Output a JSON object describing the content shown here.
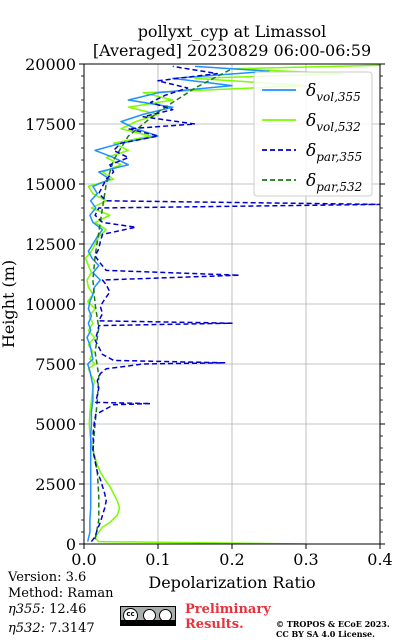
{
  "chart_data": {
    "type": "line",
    "title_line1": "pollyxt_cyp at Limassol",
    "title_line2": "[Averaged] 20230829 06:00-06:59",
    "xlabel": "Depolarization Ratio",
    "ylabel": "Height (m)",
    "xlim": [
      0,
      0.4
    ],
    "ylim": [
      0,
      20000
    ],
    "x_ticks": [
      "0.0",
      "0.1",
      "0.2",
      "0.3",
      "0.4"
    ],
    "y_ticks": [
      "0",
      "2500",
      "5000",
      "7500",
      "10000",
      "12500",
      "15000",
      "17500",
      "20000"
    ],
    "grid": true,
    "legend_position": "top-right",
    "series": [
      {
        "name": "δvol,355",
        "color": "#1e90ff",
        "dash": "solid",
        "points": [
          [
            0.005,
            100
          ],
          [
            0.008,
            500
          ],
          [
            0.008,
            1000
          ],
          [
            0.009,
            1500
          ],
          [
            0.009,
            2000
          ],
          [
            0.009,
            2500
          ],
          [
            0.009,
            3000
          ],
          [
            0.009,
            3500
          ],
          [
            0.009,
            4000
          ],
          [
            0.009,
            4500
          ],
          [
            0.01,
            5000
          ],
          [
            0.01,
            5500
          ],
          [
            0.012,
            6000
          ],
          [
            0.012,
            6300
          ],
          [
            0.012,
            6600
          ],
          [
            0.01,
            6900
          ],
          [
            0.008,
            7200
          ],
          [
            0.005,
            7500
          ],
          [
            0.012,
            7700
          ],
          [
            0.01,
            8000
          ],
          [
            0.008,
            8300
          ],
          [
            0.004,
            8600
          ],
          [
            0.009,
            8900
          ],
          [
            0.006,
            9200
          ],
          [
            0.01,
            9500
          ],
          [
            0.006,
            9800
          ],
          [
            0.008,
            10100
          ],
          [
            0.012,
            10400
          ],
          [
            0.014,
            10700
          ],
          [
            0.022,
            11000
          ],
          [
            0.012,
            11300
          ],
          [
            0.02,
            11600
          ],
          [
            0.011,
            11900
          ],
          [
            0.006,
            12200
          ],
          [
            0.012,
            12500
          ],
          [
            0.018,
            12800
          ],
          [
            0.025,
            13100
          ],
          [
            0.012,
            13400
          ],
          [
            0.008,
            13700
          ],
          [
            0.016,
            14000
          ],
          [
            0.009,
            14300
          ],
          [
            0.018,
            14600
          ],
          [
            0.012,
            14900
          ],
          [
            0.035,
            15200
          ],
          [
            0.02,
            15500
          ],
          [
            0.06,
            15800
          ],
          [
            0.04,
            16100
          ],
          [
            0.015,
            16400
          ],
          [
            0.05,
            16700
          ],
          [
            0.1,
            17000
          ],
          [
            0.07,
            17300
          ],
          [
            0.05,
            17600
          ],
          [
            0.08,
            17900
          ],
          [
            0.12,
            18200
          ],
          [
            0.06,
            18500
          ],
          [
            0.1,
            18800
          ],
          [
            0.2,
            19100
          ],
          [
            0.12,
            19400
          ],
          [
            0.25,
            19700
          ],
          [
            0.15,
            19900
          ]
        ]
      },
      {
        "name": "δvol,532",
        "color": "#7cfc00",
        "dash": "solid",
        "points": [
          [
            0.3,
            0
          ],
          [
            0.02,
            100
          ],
          [
            0.015,
            250
          ],
          [
            0.02,
            500
          ],
          [
            0.025,
            700
          ],
          [
            0.035,
            900
          ],
          [
            0.045,
            1200
          ],
          [
            0.048,
            1500
          ],
          [
            0.045,
            1800
          ],
          [
            0.04,
            2100
          ],
          [
            0.035,
            2400
          ],
          [
            0.028,
            2700
          ],
          [
            0.022,
            3000
          ],
          [
            0.018,
            3300
          ],
          [
            0.015,
            3600
          ],
          [
            0.012,
            3900
          ],
          [
            0.01,
            4200
          ],
          [
            0.008,
            4600
          ],
          [
            0.007,
            5000
          ],
          [
            0.008,
            5500
          ],
          [
            0.01,
            6000
          ],
          [
            0.012,
            6500
          ],
          [
            0.014,
            6800
          ],
          [
            0.01,
            7000
          ],
          [
            0.006,
            7300
          ],
          [
            0.015,
            7500
          ],
          [
            0.008,
            7700
          ],
          [
            0.012,
            8000
          ],
          [
            0.006,
            8300
          ],
          [
            0.014,
            8600
          ],
          [
            0.006,
            8900
          ],
          [
            0.012,
            9200
          ],
          [
            0.007,
            9500
          ],
          [
            0.015,
            9800
          ],
          [
            0.005,
            10100
          ],
          [
            0.012,
            10400
          ],
          [
            0.006,
            10700
          ],
          [
            0.004,
            11000
          ],
          [
            0.01,
            11300
          ],
          [
            0.006,
            11600
          ],
          [
            0.002,
            11900
          ],
          [
            0.01,
            12200
          ],
          [
            0.015,
            12500
          ],
          [
            0.02,
            12800
          ],
          [
            0.03,
            13100
          ],
          [
            0.015,
            13400
          ],
          [
            0.035,
            13700
          ],
          [
            0.01,
            14000
          ],
          [
            0.03,
            14300
          ],
          [
            0.012,
            14600
          ],
          [
            0.006,
            14900
          ],
          [
            0.04,
            15200
          ],
          [
            0.025,
            15500
          ],
          [
            0.05,
            15800
          ],
          [
            0.03,
            16100
          ],
          [
            0.06,
            16400
          ],
          [
            0.04,
            16700
          ],
          [
            0.09,
            17000
          ],
          [
            0.05,
            17300
          ],
          [
            0.07,
            17600
          ],
          [
            0.1,
            17900
          ],
          [
            0.06,
            18200
          ],
          [
            0.12,
            18500
          ],
          [
            0.08,
            18800
          ],
          [
            0.3,
            19100
          ],
          [
            0.15,
            19400
          ],
          [
            0.35,
            19600
          ],
          [
            0.2,
            19800
          ],
          [
            0.4,
            19950
          ]
        ]
      },
      {
        "name": "δpar,355",
        "color": "#0000cd",
        "dash": "dashed",
        "points": [
          [
            0.01,
            100
          ],
          [
            0.015,
            300
          ],
          [
            0.018,
            600
          ],
          [
            0.022,
            900
          ],
          [
            0.025,
            1200
          ],
          [
            0.028,
            1500
          ],
          [
            0.03,
            1800
          ],
          [
            0.028,
            2100
          ],
          [
            0.025,
            2400
          ],
          [
            0.022,
            2700
          ],
          [
            0.018,
            3000
          ],
          [
            0.016,
            3300
          ],
          [
            0.014,
            3600
          ],
          [
            0.012,
            3900
          ],
          [
            0.013,
            4200
          ],
          [
            0.012,
            4500
          ],
          [
            0.013,
            4800
          ],
          [
            0.014,
            5100
          ],
          [
            0.016,
            5400
          ],
          [
            0.04,
            5800
          ],
          [
            0.09,
            5850
          ],
          [
            0.016,
            5900
          ],
          [
            0.018,
            6200
          ],
          [
            0.02,
            6500
          ],
          [
            0.018,
            6800
          ],
          [
            0.022,
            7100
          ],
          [
            0.03,
            7300
          ],
          [
            0.08,
            7500
          ],
          [
            0.19,
            7550
          ],
          [
            0.04,
            7650
          ],
          [
            0.025,
            7900
          ],
          [
            0.02,
            8200
          ],
          [
            0.015,
            8500
          ],
          [
            0.018,
            8800
          ],
          [
            0.02,
            9100
          ],
          [
            0.2,
            9200
          ],
          [
            0.02,
            9300
          ],
          [
            0.025,
            9600
          ],
          [
            0.022,
            9900
          ],
          [
            0.028,
            10200
          ],
          [
            0.035,
            10500
          ],
          [
            0.03,
            10800
          ],
          [
            0.025,
            11000
          ],
          [
            0.21,
            11200
          ],
          [
            0.03,
            11400
          ],
          [
            0.022,
            11700
          ],
          [
            0.015,
            12000
          ],
          [
            0.02,
            12300
          ],
          [
            0.022,
            12600
          ],
          [
            0.025,
            12900
          ],
          [
            0.07,
            13200
          ],
          [
            0.025,
            13400
          ],
          [
            0.015,
            13700
          ],
          [
            0.02,
            14000
          ],
          [
            0.4,
            14150
          ],
          [
            0.03,
            14300
          ],
          [
            0.02,
            14600
          ],
          [
            0.025,
            14900
          ],
          [
            0.03,
            15200
          ],
          [
            0.04,
            15500
          ],
          [
            0.035,
            15800
          ],
          [
            0.06,
            16100
          ],
          [
            0.04,
            16400
          ],
          [
            0.05,
            16700
          ],
          [
            0.1,
            17000
          ],
          [
            0.06,
            17300
          ],
          [
            0.15,
            17500
          ],
          [
            0.08,
            17800
          ],
          [
            0.12,
            18100
          ],
          [
            0.09,
            18400
          ],
          [
            0.11,
            18700
          ],
          [
            0.14,
            19000
          ],
          [
            0.1,
            19300
          ],
          [
            0.18,
            19600
          ],
          [
            0.12,
            19900
          ]
        ]
      },
      {
        "name": "δpar,532",
        "color": "#1a7a1a",
        "dash": "dashed",
        "points": [
          [
            0.015,
            200
          ],
          [
            0.02,
            1000
          ],
          [
            0.02,
            2000
          ],
          [
            0.018,
            3000
          ],
          [
            0.012,
            4000
          ],
          [
            0.015,
            5000
          ],
          [
            0.018,
            6000
          ],
          [
            0.02,
            7000
          ],
          [
            0.015,
            8000
          ],
          [
            0.02,
            9000
          ],
          [
            0.015,
            10000
          ],
          [
            0.012,
            11000
          ],
          [
            0.015,
            12000
          ],
          [
            0.02,
            13000
          ],
          [
            0.025,
            14000
          ],
          [
            0.03,
            15000
          ],
          [
            0.04,
            16000
          ],
          [
            0.06,
            17000
          ],
          [
            0.1,
            18000
          ],
          [
            0.15,
            19000
          ],
          [
            0.2,
            19800
          ]
        ]
      }
    ]
  },
  "info": {
    "version": "Version: 3.6",
    "method": "Method: Raman",
    "eta355_label": "η355:",
    "eta355_value": "12.46",
    "eta532_label": "η532:",
    "eta532_value": "7.3147"
  },
  "license": {
    "cc_text": "cc",
    "preliminary_line1": "Preliminary",
    "preliminary_line2": "Results.",
    "copyright_line1": "© TROPOS & ECoE 2023.",
    "copyright_line2": "CC BY SA 4.0 License."
  }
}
